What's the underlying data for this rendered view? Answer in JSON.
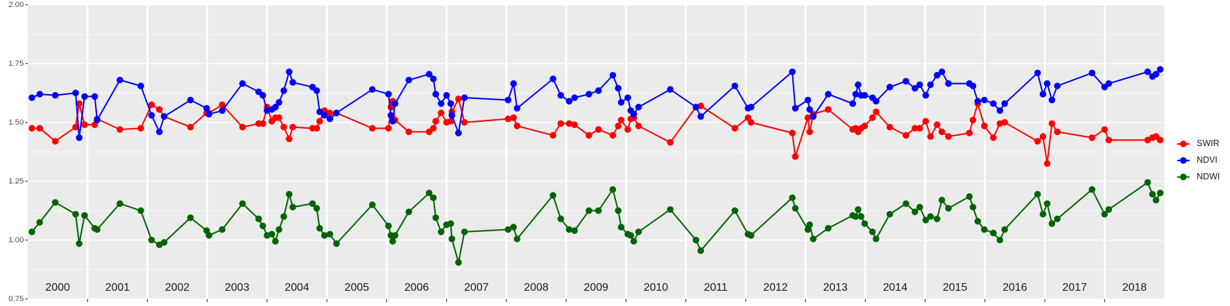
{
  "chart_data": {
    "type": "line",
    "x": [
      2000.07,
      2000.2,
      2000.46,
      2000.8,
      2000.86,
      2000.95,
      2001.12,
      2001.16,
      2001.54,
      2001.89,
      2002.07,
      2002.2,
      2002.28,
      2002.72,
      2002.99,
      2003.03,
      2003.25,
      2003.59,
      2003.86,
      2003.93,
      2004.0,
      2004.08,
      2004.14,
      2004.2,
      2004.28,
      2004.37,
      2004.43,
      2004.76,
      2004.83,
      2004.88,
      2004.96,
      2005.05,
      2005.16,
      2005.76,
      2006.03,
      2006.07,
      2006.1,
      2006.14,
      2006.37,
      2006.71,
      2006.78,
      2006.82,
      2006.91,
      2007.0,
      2007.07,
      2007.09,
      2007.2,
      2007.3,
      2008.03,
      2008.12,
      2008.18,
      2008.78,
      2008.91,
      2009.05,
      2009.14,
      2009.38,
      2009.54,
      2009.78,
      2009.87,
      2009.92,
      2010.03,
      2010.08,
      2010.13,
      2010.21,
      2010.74,
      2011.17,
      2011.25,
      2011.82,
      2012.04,
      2012.09,
      2012.78,
      2012.83,
      2013.04,
      2013.07,
      2013.13,
      2013.38,
      2013.79,
      2013.84,
      2013.88,
      2013.93,
      2013.99,
      2014.12,
      2014.18,
      2014.41,
      2014.68,
      2014.83,
      2014.91,
      2015.01,
      2015.09,
      2015.2,
      2015.28,
      2015.39,
      2015.74,
      2015.8,
      2015.88,
      2015.99,
      2016.14,
      2016.25,
      2016.33,
      2016.88,
      2016.97,
      2017.04,
      2017.12,
      2017.21,
      2017.79,
      2018.0,
      2018.07,
      2018.72,
      2018.8,
      2018.86,
      2018.93
    ],
    "series": [
      {
        "name": "SWIR",
        "color": "#ff0000",
        "values": [
          1.475,
          1.475,
          1.42,
          1.48,
          1.58,
          1.49,
          1.49,
          1.515,
          1.47,
          1.475,
          1.575,
          1.555,
          1.525,
          1.48,
          1.54,
          1.54,
          1.575,
          1.48,
          1.495,
          1.495,
          1.565,
          1.505,
          1.52,
          1.52,
          1.48,
          1.43,
          1.48,
          1.475,
          1.475,
          1.505,
          1.55,
          1.54,
          1.54,
          1.475,
          1.475,
          1.565,
          1.59,
          1.51,
          1.46,
          1.46,
          1.475,
          1.505,
          1.54,
          1.5,
          1.505,
          1.545,
          1.6,
          1.5,
          1.515,
          1.52,
          1.485,
          1.445,
          1.495,
          1.495,
          1.49,
          1.445,
          1.47,
          1.445,
          1.485,
          1.51,
          1.47,
          1.515,
          1.52,
          1.485,
          1.415,
          1.565,
          1.57,
          1.475,
          1.52,
          1.5,
          1.455,
          1.355,
          1.52,
          1.46,
          1.535,
          1.555,
          1.47,
          1.475,
          1.46,
          1.475,
          1.485,
          1.52,
          1.545,
          1.48,
          1.445,
          1.475,
          1.475,
          1.505,
          1.44,
          1.49,
          1.46,
          1.44,
          1.455,
          1.51,
          1.58,
          1.485,
          1.435,
          1.495,
          1.5,
          1.42,
          1.44,
          1.325,
          1.495,
          1.46,
          1.435,
          1.47,
          1.425,
          1.425,
          1.435,
          1.44,
          1.425
        ]
      },
      {
        "name": "NDVI",
        "color": "#0000ff",
        "values": [
          1.605,
          1.62,
          1.615,
          1.625,
          1.435,
          1.61,
          1.61,
          1.51,
          1.68,
          1.655,
          1.53,
          1.46,
          1.525,
          1.595,
          1.56,
          1.535,
          1.55,
          1.665,
          1.63,
          1.615,
          1.55,
          1.555,
          1.565,
          1.585,
          1.635,
          1.715,
          1.67,
          1.65,
          1.635,
          1.545,
          1.53,
          1.515,
          1.54,
          1.64,
          1.62,
          1.53,
          1.505,
          1.58,
          1.68,
          1.705,
          1.685,
          1.62,
          1.58,
          1.615,
          1.58,
          1.53,
          1.455,
          1.605,
          1.595,
          1.665,
          1.56,
          1.685,
          1.615,
          1.59,
          1.605,
          1.62,
          1.635,
          1.7,
          1.645,
          1.585,
          1.605,
          1.55,
          1.535,
          1.565,
          1.64,
          1.565,
          1.525,
          1.655,
          1.56,
          1.565,
          1.715,
          1.56,
          1.595,
          1.555,
          1.525,
          1.62,
          1.58,
          1.62,
          1.66,
          1.615,
          1.615,
          1.605,
          1.59,
          1.65,
          1.675,
          1.645,
          1.66,
          1.615,
          1.66,
          1.7,
          1.715,
          1.665,
          1.665,
          1.655,
          1.59,
          1.595,
          1.58,
          1.55,
          1.58,
          1.71,
          1.62,
          1.665,
          1.595,
          1.655,
          1.71,
          1.65,
          1.665,
          1.715,
          1.695,
          1.705,
          1.725
        ]
      },
      {
        "name": "NDWI",
        "color": "#006400",
        "values": [
          1.035,
          1.075,
          1.16,
          1.11,
          0.985,
          1.105,
          1.05,
          1.045,
          1.155,
          1.125,
          1.0,
          0.98,
          0.99,
          1.095,
          1.04,
          1.02,
          1.045,
          1.155,
          1.09,
          1.06,
          1.02,
          1.025,
          0.995,
          1.045,
          1.1,
          1.195,
          1.14,
          1.155,
          1.135,
          1.05,
          1.02,
          1.025,
          0.985,
          1.15,
          1.06,
          1.02,
          0.995,
          1.02,
          1.12,
          1.2,
          1.18,
          1.095,
          1.035,
          1.065,
          1.07,
          1.005,
          0.905,
          1.035,
          1.045,
          1.055,
          1.005,
          1.19,
          1.09,
          1.045,
          1.04,
          1.125,
          1.125,
          1.215,
          1.125,
          1.055,
          1.025,
          1.02,
          0.995,
          1.035,
          1.13,
          1.0,
          0.955,
          1.125,
          1.025,
          1.02,
          1.18,
          1.135,
          1.045,
          1.065,
          1.005,
          1.05,
          1.105,
          1.1,
          1.13,
          1.1,
          1.07,
          1.035,
          1.005,
          1.11,
          1.155,
          1.12,
          1.14,
          1.085,
          1.1,
          1.09,
          1.17,
          1.135,
          1.185,
          1.14,
          1.08,
          1.045,
          1.03,
          1.0,
          1.045,
          1.195,
          1.11,
          1.155,
          1.07,
          1.09,
          1.215,
          1.11,
          1.13,
          1.245,
          1.195,
          1.17,
          1.2
        ]
      }
    ],
    "xlim": [
      2000,
      2019
    ],
    "xticks": [
      {
        "value": 2000.5,
        "label": "2000"
      },
      {
        "value": 2001.5,
        "label": "2001"
      },
      {
        "value": 2002.5,
        "label": "2002"
      },
      {
        "value": 2003.5,
        "label": "2003"
      },
      {
        "value": 2004.5,
        "label": "2004"
      },
      {
        "value": 2005.5,
        "label": "2005"
      },
      {
        "value": 2006.5,
        "label": "2006"
      },
      {
        "value": 2007.5,
        "label": "2007"
      },
      {
        "value": 2008.5,
        "label": "2008"
      },
      {
        "value": 2009.5,
        "label": "2009"
      },
      {
        "value": 2010.5,
        "label": "2010"
      },
      {
        "value": 2011.5,
        "label": "2011"
      },
      {
        "value": 2012.5,
        "label": "2012"
      },
      {
        "value": 2013.5,
        "label": "2013"
      },
      {
        "value": 2014.5,
        "label": "2014"
      },
      {
        "value": 2015.5,
        "label": "2015"
      },
      {
        "value": 2016.5,
        "label": "2016"
      },
      {
        "value": 2017.5,
        "label": "2017"
      },
      {
        "value": 2018.5,
        "label": "2018"
      }
    ],
    "xgrid": [
      2001,
      2002,
      2003,
      2004,
      2005,
      2006,
      2007,
      2008,
      2009,
      2010,
      2011,
      2012,
      2013,
      2014,
      2015,
      2016,
      2017,
      2018
    ],
    "ylim": [
      0.75,
      2.0
    ],
    "yticks": [
      0.75,
      {
        "value": 1.0,
        "label": "1.00"
      },
      1.25,
      {
        "value": 1.5,
        "label": "1.50"
      },
      1.75,
      {
        "value": 2.0,
        "label": "2.00"
      }
    ],
    "grid": true,
    "legend": "right"
  }
}
